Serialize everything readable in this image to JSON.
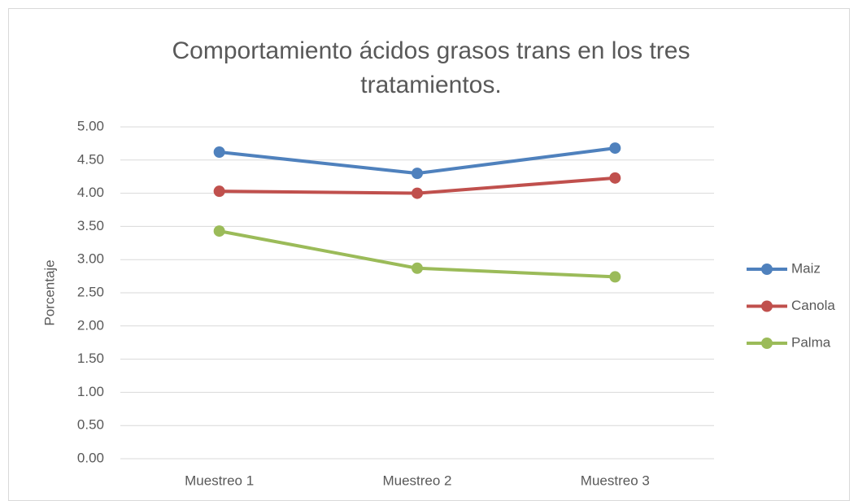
{
  "chart_data": {
    "type": "line",
    "title": "Comportamiento ácidos grasos trans en los tres tratamientos.",
    "y_label": "Porcentaje",
    "categories": [
      "Muestreo 1",
      "Muestreo 2",
      "Muestreo 3"
    ],
    "series": [
      {
        "name": "Maiz",
        "color": "#4f81bd",
        "values": [
          4.62,
          4.3,
          4.68
        ]
      },
      {
        "name": "Canola",
        "color": "#c0504d",
        "values": [
          4.03,
          4.0,
          4.23
        ]
      },
      {
        "name": "Palma",
        "color": "#9bbb59",
        "values": [
          3.43,
          2.87,
          2.74
        ]
      }
    ],
    "ylim": [
      0,
      5
    ],
    "yticks": [
      {
        "value": 0,
        "label": "0.00"
      },
      {
        "value": 0.5,
        "label": "0.50"
      },
      {
        "value": 1,
        "label": "1.00"
      },
      {
        "value": 1.5,
        "label": "1.50"
      },
      {
        "value": 2,
        "label": "2.00"
      },
      {
        "value": 2.5,
        "label": "2.50"
      },
      {
        "value": 3,
        "label": "3.00"
      },
      {
        "value": 3.5,
        "label": "3.50"
      },
      {
        "value": 4,
        "label": "4.00"
      },
      {
        "value": 4.5,
        "label": "4.50"
      },
      {
        "value": 5,
        "label": "5.00"
      }
    ],
    "grid": true,
    "legend": "right"
  }
}
